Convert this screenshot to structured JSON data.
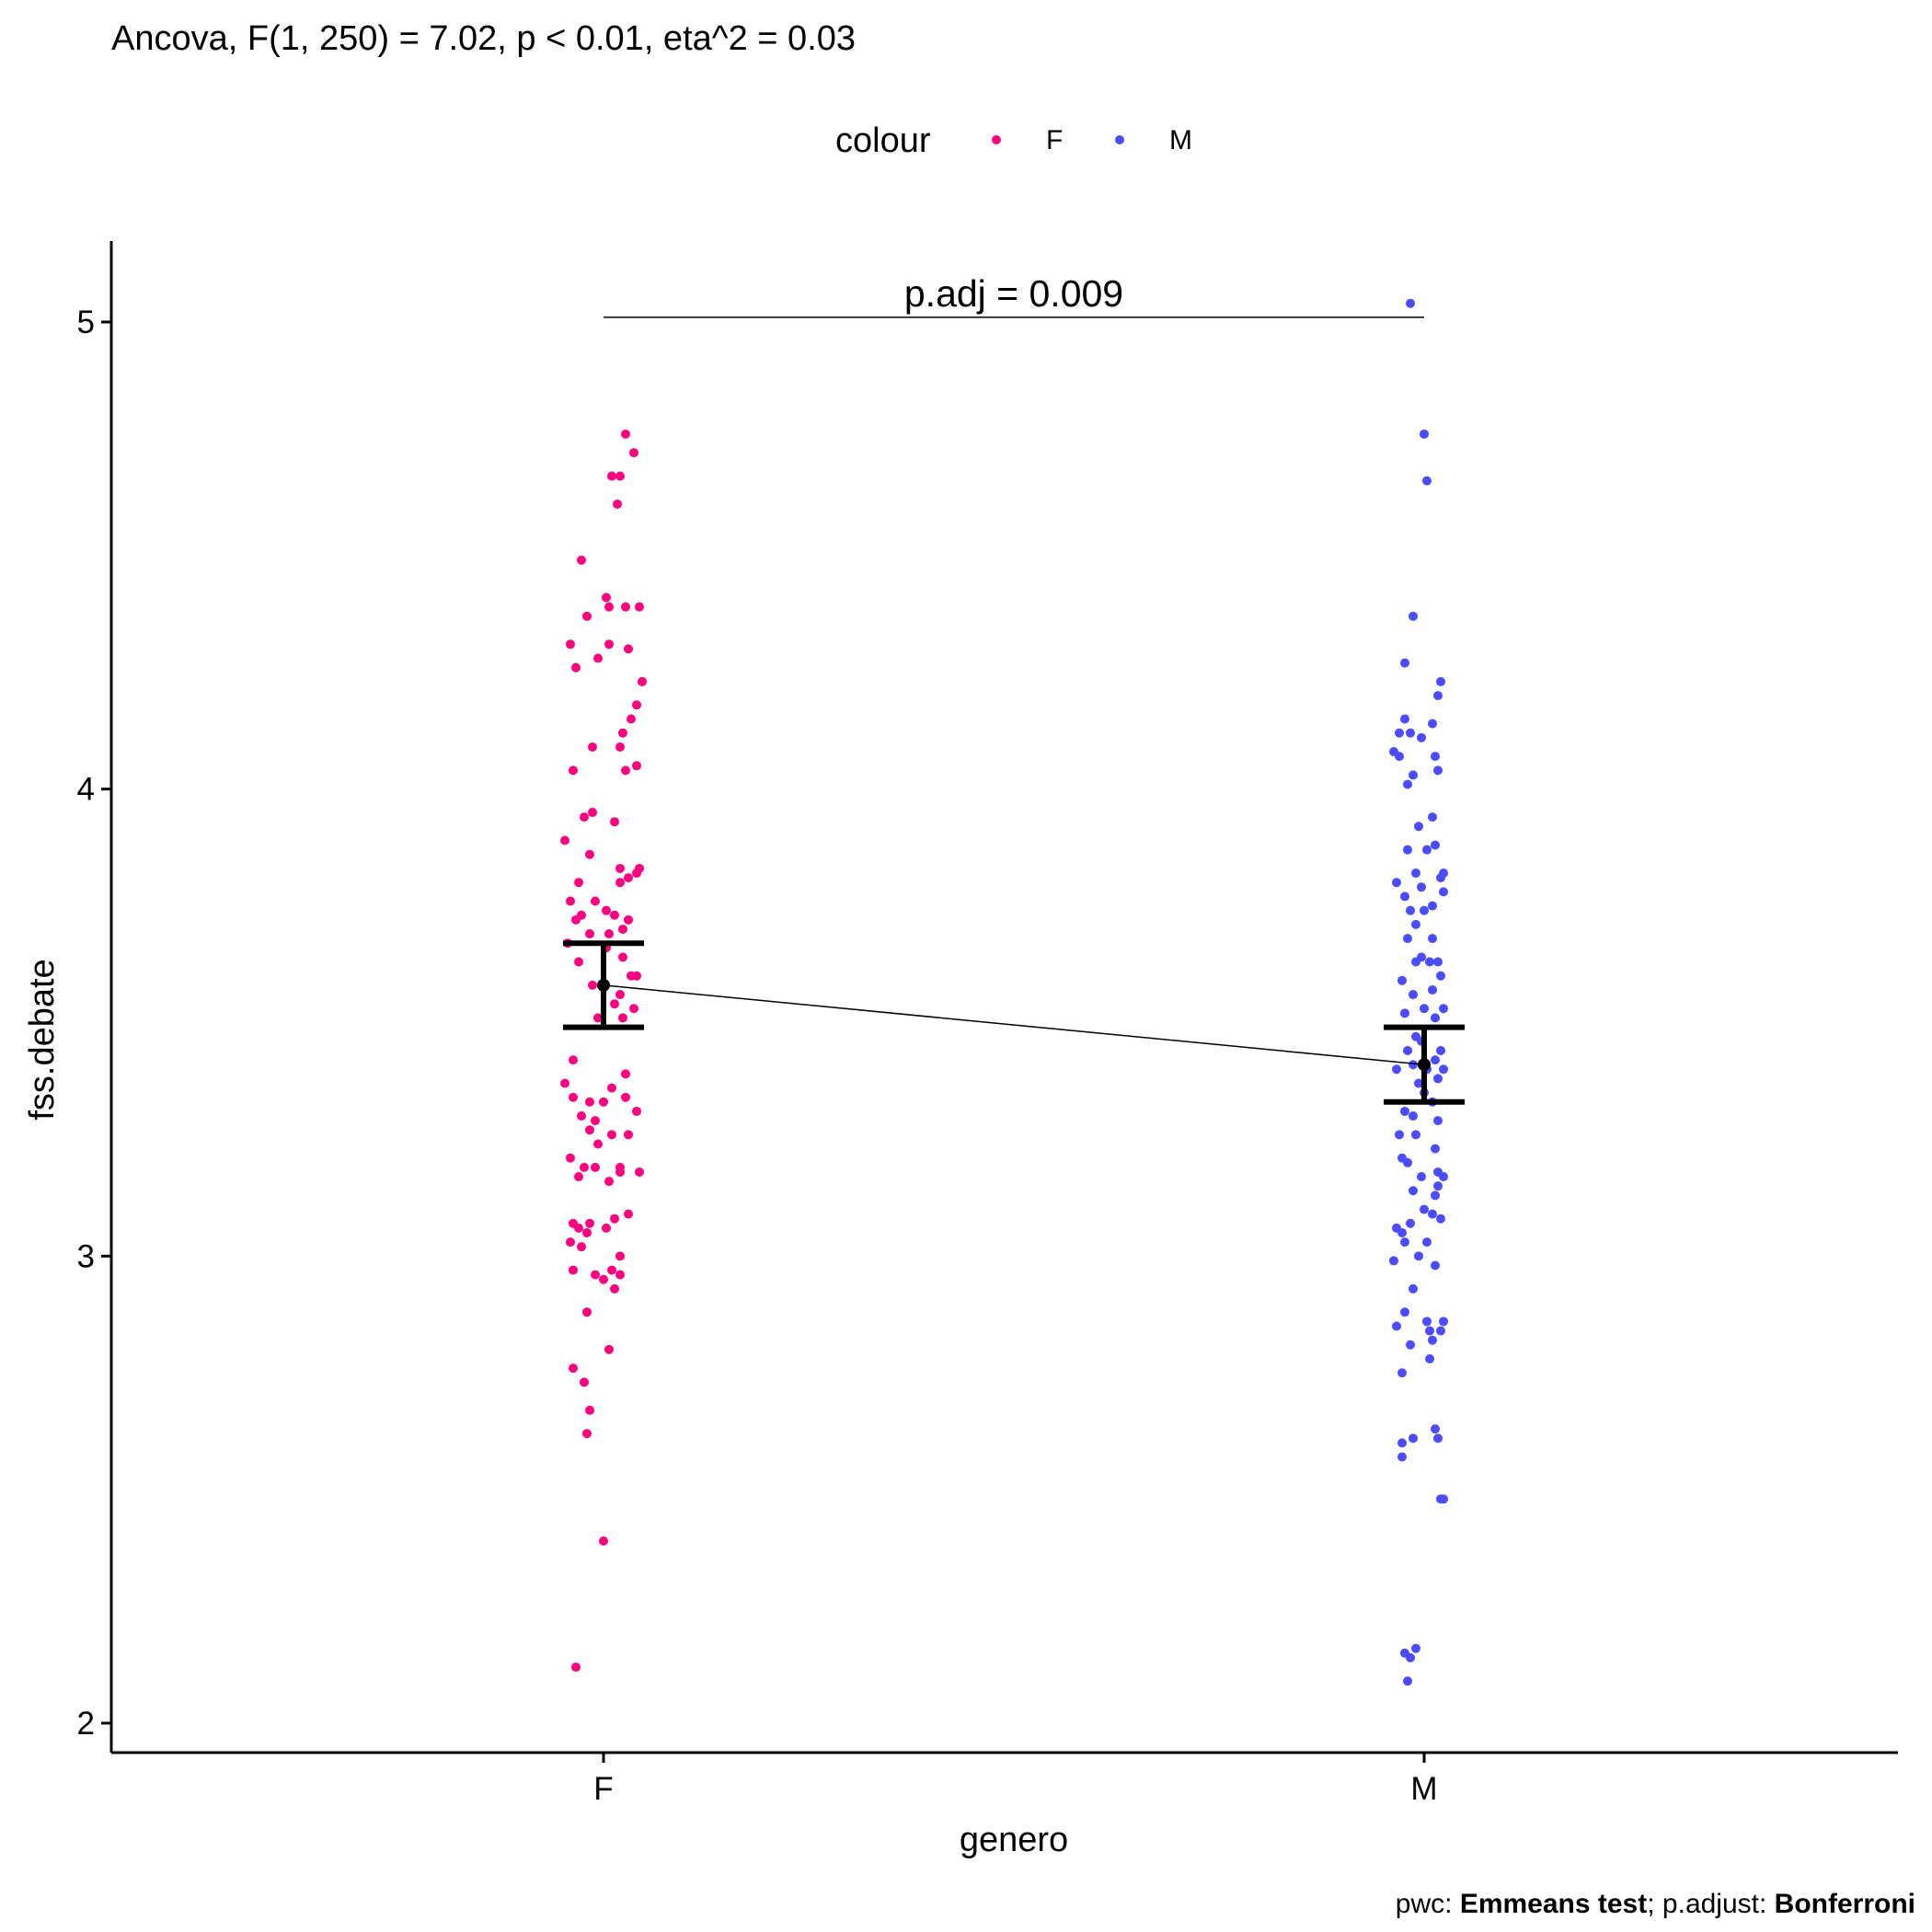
{
  "chart_data": {
    "type": "scatter",
    "title": "Ancova, F(1, 250) = 7.02, p < 0.01, eta^2 = 0.03",
    "xlabel": "genero",
    "ylabel": "fss.debate",
    "categories": [
      "F",
      "M"
    ],
    "ylim": [
      1.94,
      5.17
    ],
    "yticks": [
      2,
      3,
      4,
      5
    ],
    "ytick_labels": [
      "2",
      "3",
      "4",
      "5"
    ],
    "grid": false,
    "legend": {
      "title": "colour",
      "position": "top",
      "entries": [
        {
          "label": "F",
          "color": "#ff0080"
        },
        {
          "label": "M",
          "color": "#4b4bff"
        }
      ]
    },
    "comparison": {
      "label": "p.adj = 0.009",
      "from": "F",
      "to": "M",
      "y": 5.01
    },
    "caption": {
      "prefix": "pwc: ",
      "method": "Emmeans test",
      "sep": "; p.adjust: ",
      "adjust": "Bonferroni"
    },
    "means": [
      {
        "category": "F",
        "mean": 3.58,
        "lower": 3.49,
        "upper": 3.67
      },
      {
        "category": "M",
        "mean": 3.41,
        "lower": 3.33,
        "upper": 3.49
      }
    ],
    "series": [
      {
        "category": "F",
        "color": "#ff0080",
        "points": [
          [
            0.08,
            4.76
          ],
          [
            0.11,
            4.72
          ],
          [
            0.03,
            4.67
          ],
          [
            0.06,
            4.67
          ],
          [
            0.05,
            4.61
          ],
          [
            -0.08,
            4.49
          ],
          [
            0.01,
            4.41
          ],
          [
            0.02,
            4.39
          ],
          [
            0.08,
            4.39
          ],
          [
            0.13,
            4.39
          ],
          [
            -0.06,
            4.37
          ],
          [
            -0.12,
            4.31
          ],
          [
            0.02,
            4.31
          ],
          [
            0.09,
            4.3
          ],
          [
            -0.02,
            4.28
          ],
          [
            -0.1,
            4.26
          ],
          [
            0.14,
            4.23
          ],
          [
            0.12,
            4.18
          ],
          [
            0.1,
            4.15
          ],
          [
            0.07,
            4.12
          ],
          [
            -0.04,
            4.09
          ],
          [
            0.06,
            4.09
          ],
          [
            0.12,
            4.05
          ],
          [
            -0.11,
            4.04
          ],
          [
            0.08,
            4.04
          ],
          [
            -0.04,
            3.95
          ],
          [
            -0.07,
            3.94
          ],
          [
            0.04,
            3.93
          ],
          [
            -0.14,
            3.89
          ],
          [
            -0.05,
            3.86
          ],
          [
            0.06,
            3.83
          ],
          [
            0.13,
            3.83
          ],
          [
            0.12,
            3.82
          ],
          [
            0.09,
            3.81
          ],
          [
            0.06,
            3.8
          ],
          [
            -0.09,
            3.8
          ],
          [
            -0.12,
            3.76
          ],
          [
            -0.03,
            3.76
          ],
          [
            0.01,
            3.74
          ],
          [
            -0.08,
            3.73
          ],
          [
            0.04,
            3.73
          ],
          [
            -0.1,
            3.72
          ],
          [
            0.09,
            3.72
          ],
          [
            0.07,
            3.7
          ],
          [
            0.02,
            3.69
          ],
          [
            -0.05,
            3.69
          ],
          [
            -0.13,
            3.67
          ],
          [
            0.01,
            3.66
          ],
          [
            0.07,
            3.64
          ],
          [
            -0.09,
            3.63
          ],
          [
            0.1,
            3.6
          ],
          [
            0.12,
            3.6
          ],
          [
            -0.04,
            3.58
          ],
          [
            0.06,
            3.56
          ],
          [
            0.04,
            3.54
          ],
          [
            0.11,
            3.53
          ],
          [
            0.07,
            3.51
          ],
          [
            -0.02,
            3.51
          ],
          [
            -0.11,
            3.42
          ],
          [
            0.08,
            3.39
          ],
          [
            -0.14,
            3.37
          ],
          [
            0.03,
            3.36
          ],
          [
            0.08,
            3.34
          ],
          [
            -0.11,
            3.34
          ],
          [
            0.0,
            3.33
          ],
          [
            -0.05,
            3.33
          ],
          [
            0.12,
            3.31
          ],
          [
            -0.08,
            3.3
          ],
          [
            -0.03,
            3.29
          ],
          [
            -0.05,
            3.27
          ],
          [
            0.03,
            3.26
          ],
          [
            0.09,
            3.26
          ],
          [
            -0.02,
            3.24
          ],
          [
            -0.12,
            3.21
          ],
          [
            -0.07,
            3.19
          ],
          [
            -0.03,
            3.19
          ],
          [
            0.06,
            3.19
          ],
          [
            0.13,
            3.18
          ],
          [
            0.06,
            3.18
          ],
          [
            -0.09,
            3.17
          ],
          [
            0.02,
            3.16
          ],
          [
            0.09,
            3.09
          ],
          [
            0.04,
            3.08
          ],
          [
            -0.11,
            3.07
          ],
          [
            -0.05,
            3.07
          ],
          [
            -0.09,
            3.06
          ],
          [
            -0.06,
            3.05
          ],
          [
            0.01,
            3.06
          ],
          [
            -0.12,
            3.03
          ],
          [
            -0.08,
            3.02
          ],
          [
            0.06,
            3.0
          ],
          [
            0.03,
            2.97
          ],
          [
            -0.11,
            2.97
          ],
          [
            0.06,
            2.96
          ],
          [
            -0.03,
            2.96
          ],
          [
            0.0,
            2.95
          ],
          [
            0.04,
            2.93
          ],
          [
            -0.06,
            2.88
          ],
          [
            0.02,
            2.8
          ],
          [
            -0.11,
            2.76
          ],
          [
            -0.07,
            2.73
          ],
          [
            -0.05,
            2.67
          ],
          [
            -0.06,
            2.62
          ],
          [
            0.0,
            2.39
          ],
          [
            -0.1,
            2.12
          ]
        ]
      },
      {
        "category": "M",
        "color": "#4b4bff",
        "points": [
          [
            -0.05,
            5.04
          ],
          [
            0.0,
            4.76
          ],
          [
            0.01,
            4.66
          ],
          [
            -0.04,
            4.37
          ],
          [
            -0.07,
            4.27
          ],
          [
            0.06,
            4.23
          ],
          [
            0.05,
            4.2
          ],
          [
            -0.07,
            4.15
          ],
          [
            0.03,
            4.14
          ],
          [
            -0.09,
            4.12
          ],
          [
            -0.05,
            4.12
          ],
          [
            -0.01,
            4.11
          ],
          [
            -0.11,
            4.08
          ],
          [
            -0.09,
            4.07
          ],
          [
            0.04,
            4.07
          ],
          [
            0.05,
            4.04
          ],
          [
            -0.04,
            4.03
          ],
          [
            -0.06,
            4.01
          ],
          [
            0.03,
            3.94
          ],
          [
            -0.02,
            3.92
          ],
          [
            -0.06,
            3.87
          ],
          [
            0.01,
            3.87
          ],
          [
            0.04,
            3.88
          ],
          [
            -0.03,
            3.82
          ],
          [
            0.07,
            3.82
          ],
          [
            0.06,
            3.81
          ],
          [
            -0.1,
            3.8
          ],
          [
            -0.01,
            3.79
          ],
          [
            0.07,
            3.78
          ],
          [
            -0.07,
            3.77
          ],
          [
            0.03,
            3.75
          ],
          [
            0.0,
            3.74
          ],
          [
            -0.05,
            3.74
          ],
          [
            -0.03,
            3.71
          ],
          [
            -0.06,
            3.68
          ],
          [
            0.03,
            3.68
          ],
          [
            0.05,
            3.63
          ],
          [
            -0.01,
            3.64
          ],
          [
            -0.03,
            3.63
          ],
          [
            0.02,
            3.63
          ],
          [
            0.06,
            3.6
          ],
          [
            -0.08,
            3.59
          ],
          [
            0.03,
            3.57
          ],
          [
            -0.04,
            3.56
          ],
          [
            0.0,
            3.53
          ],
          [
            -0.07,
            3.52
          ],
          [
            0.07,
            3.53
          ],
          [
            0.04,
            3.51
          ],
          [
            -0.03,
            3.47
          ],
          [
            -0.01,
            3.46
          ],
          [
            0.06,
            3.44
          ],
          [
            -0.06,
            3.44
          ],
          [
            0.04,
            3.42
          ],
          [
            -0.04,
            3.41
          ],
          [
            -0.1,
            3.4
          ],
          [
            0.01,
            3.4
          ],
          [
            0.07,
            3.4
          ],
          [
            0.05,
            3.38
          ],
          [
            -0.02,
            3.37
          ],
          [
            0.0,
            3.35
          ],
          [
            0.03,
            3.33
          ],
          [
            -0.07,
            3.31
          ],
          [
            -0.04,
            3.3
          ],
          [
            0.05,
            3.29
          ],
          [
            -0.09,
            3.26
          ],
          [
            -0.03,
            3.26
          ],
          [
            0.04,
            3.23
          ],
          [
            -0.08,
            3.21
          ],
          [
            -0.06,
            3.2
          ],
          [
            0.05,
            3.18
          ],
          [
            -0.01,
            3.17
          ],
          [
            0.07,
            3.17
          ],
          [
            0.05,
            3.15
          ],
          [
            -0.04,
            3.14
          ],
          [
            0.04,
            3.13
          ],
          [
            0.0,
            3.1
          ],
          [
            0.03,
            3.09
          ],
          [
            0.06,
            3.08
          ],
          [
            -0.1,
            3.06
          ],
          [
            -0.05,
            3.07
          ],
          [
            -0.08,
            3.05
          ],
          [
            -0.07,
            3.03
          ],
          [
            0.01,
            3.03
          ],
          [
            -0.02,
            3.0
          ],
          [
            0.04,
            2.98
          ],
          [
            -0.11,
            2.99
          ],
          [
            -0.04,
            2.93
          ],
          [
            -0.07,
            2.88
          ],
          [
            0.01,
            2.86
          ],
          [
            0.07,
            2.86
          ],
          [
            -0.1,
            2.85
          ],
          [
            0.06,
            2.84
          ],
          [
            0.02,
            2.84
          ],
          [
            0.03,
            2.82
          ],
          [
            -0.05,
            2.81
          ],
          [
            0.02,
            2.78
          ],
          [
            -0.08,
            2.75
          ],
          [
            0.04,
            2.63
          ],
          [
            0.05,
            2.61
          ],
          [
            -0.04,
            2.61
          ],
          [
            -0.08,
            2.6
          ],
          [
            -0.08,
            2.57
          ],
          [
            0.06,
            2.48
          ],
          [
            0.07,
            2.48
          ],
          [
            -0.03,
            2.16
          ],
          [
            -0.07,
            2.15
          ],
          [
            -0.05,
            2.14
          ],
          [
            -0.06,
            2.09
          ]
        ]
      }
    ]
  }
}
